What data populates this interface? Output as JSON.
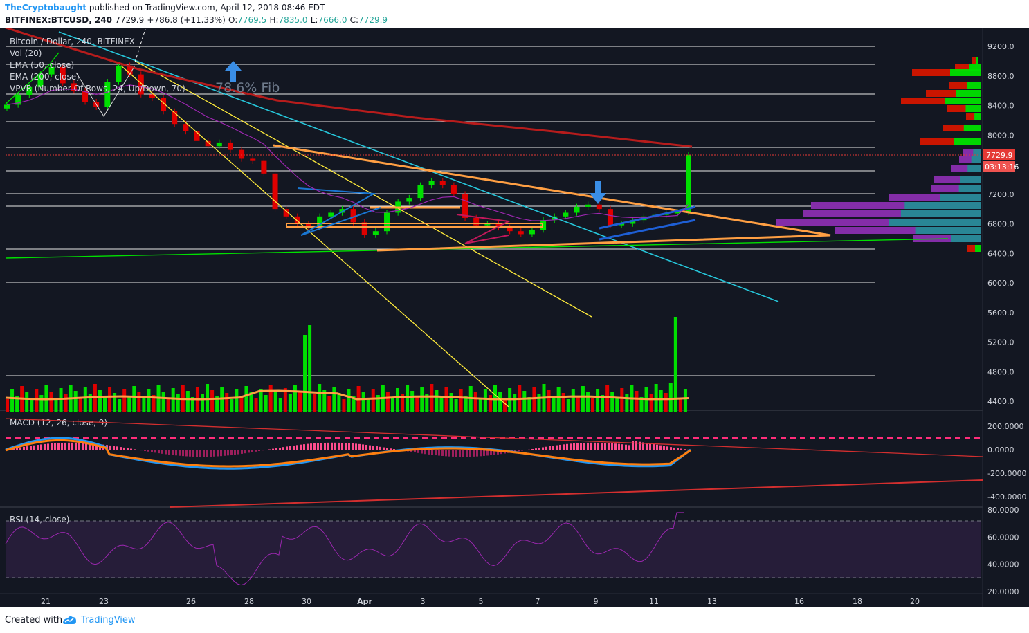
{
  "header": {
    "author": "TheCryptobaught",
    "published": "published on TradingView.com, April 12, 2018 08:46 EDT",
    "symbol": "BITFINEX:BTCUSD, 240",
    "last": "7729.9",
    "change": "+786.8 (+11.33%)",
    "o_label": "O:",
    "o": "7769.5",
    "h_label": "H:",
    "h": "7835.0",
    "l_label": "L:",
    "l": "7666.0",
    "c_label": "C:",
    "c": "7729.9"
  },
  "legend": {
    "title": "Bitcoin / Dollar, 240, BITFINEX",
    "items": [
      "Vol (20)",
      "EMA (50, close)",
      "EMA (200, close)",
      "VPVR (Number Of Rows, 24, Up/Down, 70)"
    ]
  },
  "annotation": "78.6% Fib",
  "price_label": "7729.9",
  "countdown_label": "03:13:16",
  "macd_title": "MACD (12, 26, close, 9)",
  "rsi_title": "RSI (14, close)",
  "footer": {
    "created": "Created with",
    "brand": "TradingView"
  },
  "colors": {
    "bg": "#131722",
    "up": "#00e000",
    "down": "#e00000",
    "ema50": "#9c27b0",
    "ema200": "#b71c1c",
    "macd": "#2196f3",
    "signal": "#ff7f0e"
  },
  "chart_data": {
    "type": "candlestick",
    "x_ticks": [
      "21",
      "23",
      "26",
      "28",
      "30",
      "Apr",
      "3",
      "5",
      "7",
      "9",
      "11",
      "13",
      "16",
      "18",
      "20"
    ],
    "price_axis": {
      "min": 4200,
      "max": 9300,
      "ticks": [
        "9200.0",
        "8800.0",
        "8400.0",
        "8000.0",
        "7600.0",
        "7200.0",
        "6800.0",
        "6400.0",
        "6000.0",
        "5600.0",
        "5200.0",
        "4800.0",
        "4400.0"
      ]
    },
    "macd_axis": {
      "min": -420,
      "max": 260,
      "ticks": [
        "200.0000",
        "0.0000",
        "-200.0000",
        "-400.0000"
      ]
    },
    "rsi_axis": {
      "min": 18,
      "max": 83,
      "ticks": [
        "80.0000",
        "60.0000",
        "40.0000",
        "20.0000"
      ],
      "bands": [
        30,
        70
      ]
    },
    "ohlc_close_path": [
      8410,
      8540,
      8650,
      8820,
      8920,
      8700,
      8600,
      8450,
      8380,
      8720,
      8940,
      8820,
      8550,
      8500,
      8320,
      8150,
      8050,
      7920,
      7850,
      7900,
      7800,
      7680,
      7650,
      7480,
      7000,
      6900,
      6800,
      6750,
      6900,
      6950,
      7000,
      6820,
      6650,
      6700,
      6950,
      7100,
      7150,
      7320,
      7380,
      7320,
      7200,
      6880,
      6780,
      6800,
      6750,
      6700,
      6660,
      6720,
      6850,
      6900,
      6950,
      7030,
      7060,
      7000,
      6780,
      6800,
      6850,
      6900,
      6920,
      6940,
      6960,
      7729.9
    ],
    "last_close": 7729.9,
    "volume_note": "volume bars shown with 20-period average line",
    "vpvr_rows": 24
  }
}
